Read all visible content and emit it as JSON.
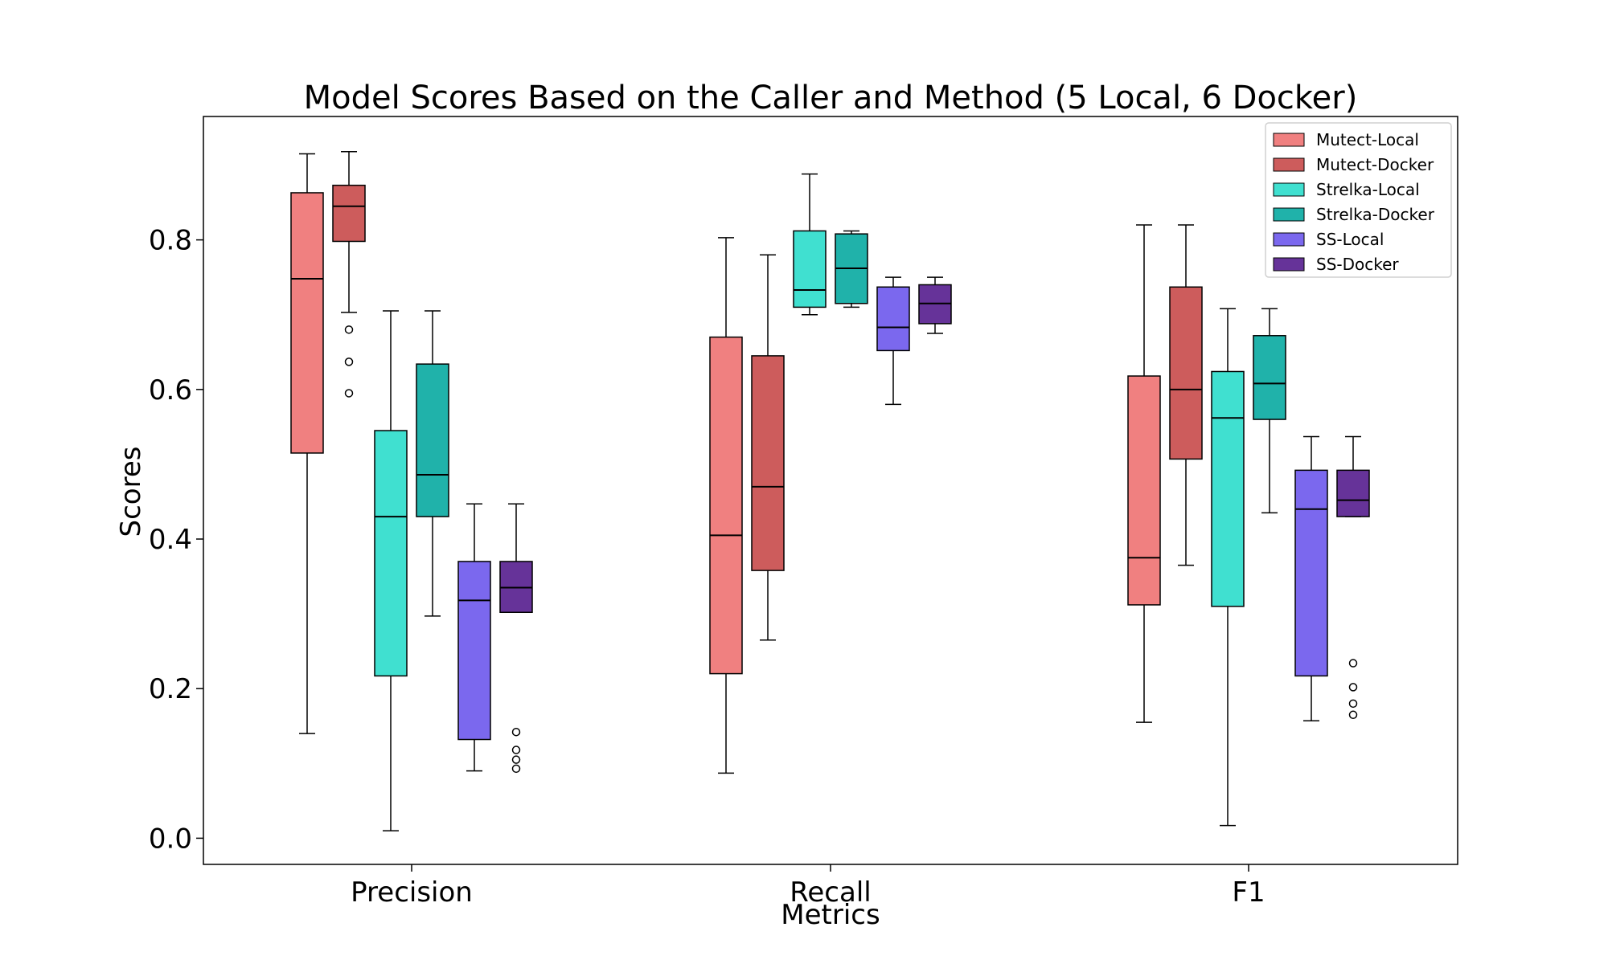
{
  "chart_data": {
    "type": "box",
    "title": "Model Scores Based on the Caller and Method (5 Local, 6 Docker)",
    "xlabel": "Metrics",
    "ylabel": "Scores",
    "ylim": [
      -0.035,
      0.965
    ],
    "yticks": [
      "0.0",
      "0.2",
      "0.4",
      "0.6",
      "0.8"
    ],
    "categories": [
      "Precision",
      "Recall",
      "F1"
    ],
    "legend_position": "top-right",
    "series": [
      {
        "name": "Mutect-Local",
        "color": "#F08080",
        "boxes": [
          {
            "whislo": 0.14,
            "q1": 0.515,
            "med": 0.748,
            "q3": 0.863,
            "whishi": 0.915,
            "fliers": []
          },
          {
            "whislo": 0.087,
            "q1": 0.22,
            "med": 0.405,
            "q3": 0.67,
            "whishi": 0.803,
            "fliers": []
          },
          {
            "whislo": 0.155,
            "q1": 0.312,
            "med": 0.375,
            "q3": 0.618,
            "whishi": 0.82,
            "fliers": []
          }
        ]
      },
      {
        "name": "Mutect-Docker",
        "color": "#CD5C5C",
        "boxes": [
          {
            "whislo": 0.703,
            "q1": 0.798,
            "med": 0.845,
            "q3": 0.873,
            "whishi": 0.918,
            "fliers": [
              0.68,
              0.637,
              0.595
            ]
          },
          {
            "whislo": 0.265,
            "q1": 0.358,
            "med": 0.47,
            "q3": 0.645,
            "whishi": 0.78,
            "fliers": []
          },
          {
            "whislo": 0.365,
            "q1": 0.507,
            "med": 0.6,
            "q3": 0.737,
            "whishi": 0.82,
            "fliers": []
          }
        ]
      },
      {
        "name": "Strelka-Local",
        "color": "#40E0D0",
        "boxes": [
          {
            "whislo": 0.01,
            "q1": 0.217,
            "med": 0.43,
            "q3": 0.545,
            "whishi": 0.705,
            "fliers": []
          },
          {
            "whislo": 0.7,
            "q1": 0.71,
            "med": 0.733,
            "q3": 0.812,
            "whishi": 0.888,
            "fliers": []
          },
          {
            "whislo": 0.017,
            "q1": 0.31,
            "med": 0.562,
            "q3": 0.624,
            "whishi": 0.708,
            "fliers": []
          }
        ]
      },
      {
        "name": "Strelka-Docker",
        "color": "#20B2AA",
        "boxes": [
          {
            "whislo": 0.297,
            "q1": 0.43,
            "med": 0.486,
            "q3": 0.634,
            "whishi": 0.705,
            "fliers": []
          },
          {
            "whislo": 0.71,
            "q1": 0.715,
            "med": 0.762,
            "q3": 0.808,
            "whishi": 0.812,
            "fliers": []
          },
          {
            "whislo": 0.435,
            "q1": 0.56,
            "med": 0.608,
            "q3": 0.672,
            "whishi": 0.708,
            "fliers": []
          }
        ]
      },
      {
        "name": "SS-Local",
        "color": "#7B68EE",
        "boxes": [
          {
            "whislo": 0.09,
            "q1": 0.132,
            "med": 0.318,
            "q3": 0.37,
            "whishi": 0.447,
            "fliers": []
          },
          {
            "whislo": 0.58,
            "q1": 0.652,
            "med": 0.683,
            "q3": 0.737,
            "whishi": 0.75,
            "fliers": []
          },
          {
            "whislo": 0.157,
            "q1": 0.217,
            "med": 0.44,
            "q3": 0.492,
            "whishi": 0.537,
            "fliers": []
          }
        ]
      },
      {
        "name": "SS-Docker",
        "color": "#663399",
        "boxes": [
          {
            "whislo": 0.302,
            "q1": 0.302,
            "med": 0.335,
            "q3": 0.37,
            "whishi": 0.447,
            "fliers": [
              0.142,
              0.118,
              0.105,
              0.093
            ]
          },
          {
            "whislo": 0.675,
            "q1": 0.688,
            "med": 0.715,
            "q3": 0.74,
            "whishi": 0.75,
            "fliers": []
          },
          {
            "whislo": 0.43,
            "q1": 0.43,
            "med": 0.452,
            "q3": 0.492,
            "whishi": 0.537,
            "fliers": [
              0.234,
              0.202,
              0.18,
              0.165
            ]
          }
        ]
      }
    ]
  }
}
